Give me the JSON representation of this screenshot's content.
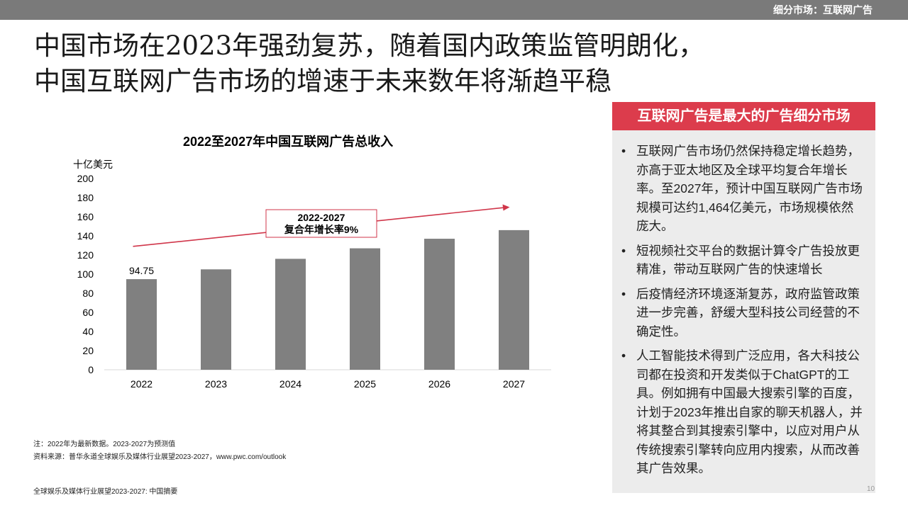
{
  "header": {
    "section_label": "细分市场：互联网广告"
  },
  "title": {
    "line1": "中国市场在2023年强劲复苏，随着国内政策监管明朗化，",
    "line2": "中国互联网广告市场的增速于未来数年将渐趋平稳"
  },
  "chart_data": {
    "type": "bar",
    "title": "2022至2027年中国互联网广告总收入",
    "ylabel": "十亿美元",
    "categories": [
      "2022",
      "2023",
      "2024",
      "2025",
      "2026",
      "2027"
    ],
    "values": [
      94.75,
      105,
      116,
      127,
      137,
      146
    ],
    "data_labels": [
      "94.75",
      "",
      "",
      "",
      "",
      ""
    ],
    "ylim": [
      0,
      200
    ],
    "yticks": [
      0,
      20,
      40,
      60,
      80,
      100,
      120,
      140,
      160,
      180,
      200
    ],
    "bar_color": "#808080",
    "annotation": {
      "line1": "2022-2027",
      "line2": "复合年增长率9%"
    },
    "arrow_color": "#d0364a"
  },
  "panel": {
    "header": "互联网广告是最大的广告细分市场",
    "bullets": [
      "互联网广告市场仍然保持稳定增长趋势，亦高于亚太地区及全球平均复合年增长率。至2027年，预计中国互联网广告市场规模可达约1,464亿美元，市场规模依然庞大。",
      "短视频社交平台的数据计算令广告投放更精准，带动互联网广告的快速增长",
      "后疫情经济环境逐渐复苏，政府监管政策进一步完善，舒缓大型科技公司经营的不确定性。",
      "人工智能技术得到广泛应用，各大科技公司都在投资和开发类似于ChatGPT的工具。例如拥有中国最大搜索引擎的百度，计划于2023年推出自家的聊天机器人，并将其整合到其搜索引擎中，以应对用户从传统搜索引擎转向应用内搜索，从而改善其广告效果。"
    ],
    "bullet_symbol": "•"
  },
  "footer": {
    "note": "注：2022年为最新数据。2023-2027为预测值",
    "source": "资料来源：普华永道全球娱乐及媒体行业展望2023-2027，www.pwc.com/outlook",
    "doc_title": "全球娱乐及媒体行业展望2023-2027: 中国摘要",
    "page_number": "10"
  },
  "colors": {
    "topbar": "#7a7a7a",
    "accent": "#dc3c4c",
    "panel_bg": "#ececec"
  }
}
